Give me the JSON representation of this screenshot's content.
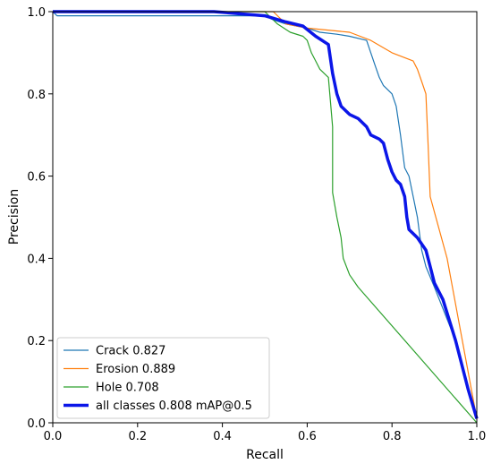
{
  "chart_data": {
    "type": "line",
    "xlabel": "Recall",
    "ylabel": "Precision",
    "xlim": [
      0,
      1
    ],
    "ylim": [
      0,
      1
    ],
    "x_ticks": [
      "0.0",
      "0.2",
      "0.4",
      "0.6",
      "0.8",
      "1.0"
    ],
    "y_ticks": [
      "0.0",
      "0.2",
      "0.4",
      "0.6",
      "0.8",
      "1.0"
    ],
    "grid": false,
    "legend_position": "lower-left",
    "series": [
      {
        "name": "Crack 0.827",
        "color": "#1f77b4",
        "width": "thin",
        "points": [
          [
            0.0,
            1.0
          ],
          [
            0.01,
            0.99
          ],
          [
            0.3,
            0.99
          ],
          [
            0.5,
            0.99
          ],
          [
            0.52,
            0.98
          ],
          [
            0.55,
            0.97
          ],
          [
            0.6,
            0.96
          ],
          [
            0.63,
            0.95
          ],
          [
            0.67,
            0.945
          ],
          [
            0.7,
            0.94
          ],
          [
            0.74,
            0.93
          ],
          [
            0.75,
            0.9
          ],
          [
            0.76,
            0.87
          ],
          [
            0.77,
            0.84
          ],
          [
            0.78,
            0.82
          ],
          [
            0.79,
            0.81
          ],
          [
            0.8,
            0.8
          ],
          [
            0.81,
            0.77
          ],
          [
            0.82,
            0.7
          ],
          [
            0.83,
            0.62
          ],
          [
            0.84,
            0.6
          ],
          [
            0.85,
            0.55
          ],
          [
            0.86,
            0.5
          ],
          [
            0.87,
            0.42
          ],
          [
            0.88,
            0.38
          ],
          [
            0.9,
            0.33
          ],
          [
            0.95,
            0.2
          ],
          [
            1.0,
            0.01
          ]
        ]
      },
      {
        "name": "Erosion 0.889",
        "color": "#ff7f0e",
        "width": "thin",
        "points": [
          [
            0.0,
            1.0
          ],
          [
            0.52,
            1.0
          ],
          [
            0.55,
            0.97
          ],
          [
            0.6,
            0.96
          ],
          [
            0.7,
            0.95
          ],
          [
            0.75,
            0.93
          ],
          [
            0.8,
            0.9
          ],
          [
            0.85,
            0.88
          ],
          [
            0.86,
            0.86
          ],
          [
            0.87,
            0.83
          ],
          [
            0.88,
            0.8
          ],
          [
            0.885,
            0.68
          ],
          [
            0.89,
            0.55
          ],
          [
            0.93,
            0.4
          ],
          [
            1.0,
            0.01
          ]
        ]
      },
      {
        "name": "Hole 0.708",
        "color": "#2ca02c",
        "width": "thin",
        "points": [
          [
            0.0,
            1.0
          ],
          [
            0.5,
            1.0
          ],
          [
            0.53,
            0.97
          ],
          [
            0.56,
            0.95
          ],
          [
            0.59,
            0.94
          ],
          [
            0.6,
            0.93
          ],
          [
            0.61,
            0.9
          ],
          [
            0.62,
            0.88
          ],
          [
            0.63,
            0.86
          ],
          [
            0.64,
            0.85
          ],
          [
            0.65,
            0.84
          ],
          [
            0.66,
            0.72
          ],
          [
            0.66,
            0.56
          ],
          [
            0.67,
            0.5
          ],
          [
            0.68,
            0.45
          ],
          [
            0.685,
            0.4
          ],
          [
            0.7,
            0.36
          ],
          [
            0.72,
            0.33
          ],
          [
            1.0,
            0.0
          ]
        ]
      },
      {
        "name": "all classes 0.808 mAP@0.5",
        "color": "#0b16e8",
        "width": "thick",
        "points": [
          [
            0.0,
            1.0
          ],
          [
            0.38,
            1.0
          ],
          [
            0.5,
            0.99
          ],
          [
            0.55,
            0.975
          ],
          [
            0.59,
            0.965
          ],
          [
            0.62,
            0.94
          ],
          [
            0.65,
            0.92
          ],
          [
            0.66,
            0.85
          ],
          [
            0.67,
            0.8
          ],
          [
            0.68,
            0.77
          ],
          [
            0.7,
            0.75
          ],
          [
            0.72,
            0.74
          ],
          [
            0.74,
            0.72
          ],
          [
            0.75,
            0.7
          ],
          [
            0.77,
            0.69
          ],
          [
            0.78,
            0.68
          ],
          [
            0.79,
            0.64
          ],
          [
            0.8,
            0.61
          ],
          [
            0.81,
            0.59
          ],
          [
            0.82,
            0.58
          ],
          [
            0.83,
            0.55
          ],
          [
            0.835,
            0.5
          ],
          [
            0.84,
            0.47
          ],
          [
            0.86,
            0.45
          ],
          [
            0.88,
            0.42
          ],
          [
            0.89,
            0.38
          ],
          [
            0.9,
            0.34
          ],
          [
            0.92,
            0.3
          ],
          [
            0.95,
            0.2
          ],
          [
            0.98,
            0.08
          ],
          [
            1.0,
            0.01
          ]
        ]
      }
    ]
  }
}
